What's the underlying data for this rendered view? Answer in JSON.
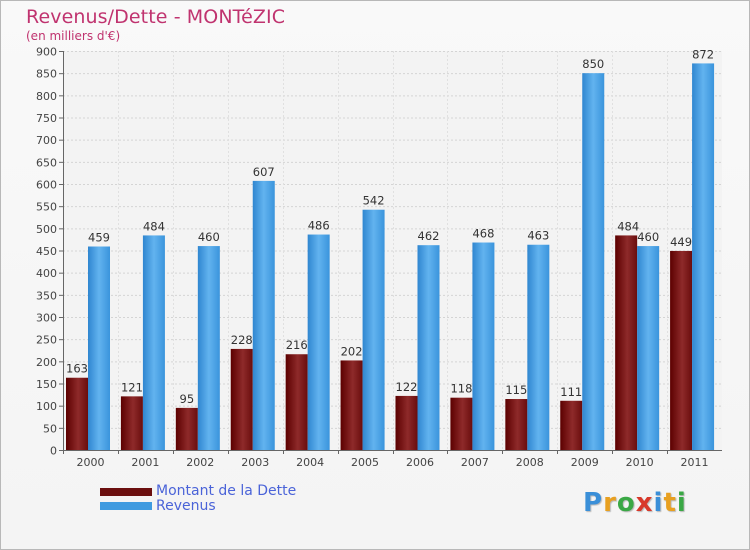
{
  "header": {
    "title": "Revenus/Dette - MONTéZIC",
    "subtitle": "(en milliers d'€)"
  },
  "chart_data": {
    "type": "bar",
    "title": "Revenus/Dette - MONTéZIC",
    "ylabel": "(en milliers d'€)",
    "categories": [
      "2000",
      "2001",
      "2002",
      "2003",
      "2004",
      "2005",
      "2006",
      "2007",
      "2008",
      "2009",
      "2010",
      "2011"
    ],
    "series": [
      {
        "name": "Montant de la Dette",
        "color": "#8b1a1a",
        "values": [
          163,
          121,
          95,
          228,
          216,
          202,
          122,
          118,
          115,
          111,
          484,
          449
        ]
      },
      {
        "name": "Revenus",
        "color": "#3f9be0",
        "values": [
          459,
          484,
          460,
          607,
          486,
          542,
          462,
          468,
          463,
          850,
          460,
          872
        ]
      }
    ],
    "ylim": [
      0,
      900
    ],
    "yticks": [
      0,
      50,
      100,
      150,
      200,
      250,
      300,
      350,
      400,
      450,
      500,
      550,
      600,
      650,
      700,
      750,
      800,
      850,
      900
    ],
    "grid": true,
    "legend": "bottom-left"
  },
  "legend": {
    "items": [
      {
        "label": "Montant de la Dette",
        "color": "#6b0f0f"
      },
      {
        "label": "Revenus",
        "color": "#3f9be0"
      }
    ]
  },
  "logo": {
    "letters": [
      {
        "ch": "P",
        "color": "#3a8fd8"
      },
      {
        "ch": "r",
        "color": "#e8a020"
      },
      {
        "ch": "o",
        "color": "#3aa845"
      },
      {
        "ch": "x",
        "color": "#d8382a"
      },
      {
        "ch": "i",
        "color": "#3a8fd8"
      },
      {
        "ch": "t",
        "color": "#e8a020"
      },
      {
        "ch": "i",
        "color": "#3aa845"
      }
    ]
  }
}
